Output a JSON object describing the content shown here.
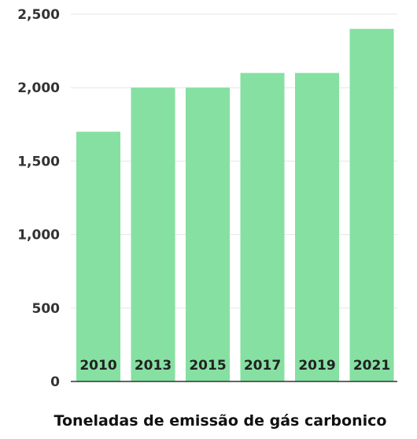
{
  "chart_data": {
    "type": "bar",
    "categories": [
      "2010",
      "2013",
      "2015",
      "2017",
      "2019",
      "2021"
    ],
    "values": [
      1700,
      2000,
      2000,
      2100,
      2100,
      2400
    ],
    "title": "",
    "xlabel": "Toneladas de emissão de gás carbonico",
    "ylabel": "",
    "ylim": [
      0,
      2500
    ],
    "yticks": [
      0,
      500,
      1000,
      1500,
      2000,
      2500
    ],
    "ytick_labels": [
      "0",
      "500",
      "1,000",
      "1,500",
      "2,000",
      "2,500"
    ],
    "grid": true,
    "legend": "none",
    "colors": {
      "bar": "#86e0a2",
      "grid": "#e6e6e6",
      "axis": "#333333"
    }
  }
}
